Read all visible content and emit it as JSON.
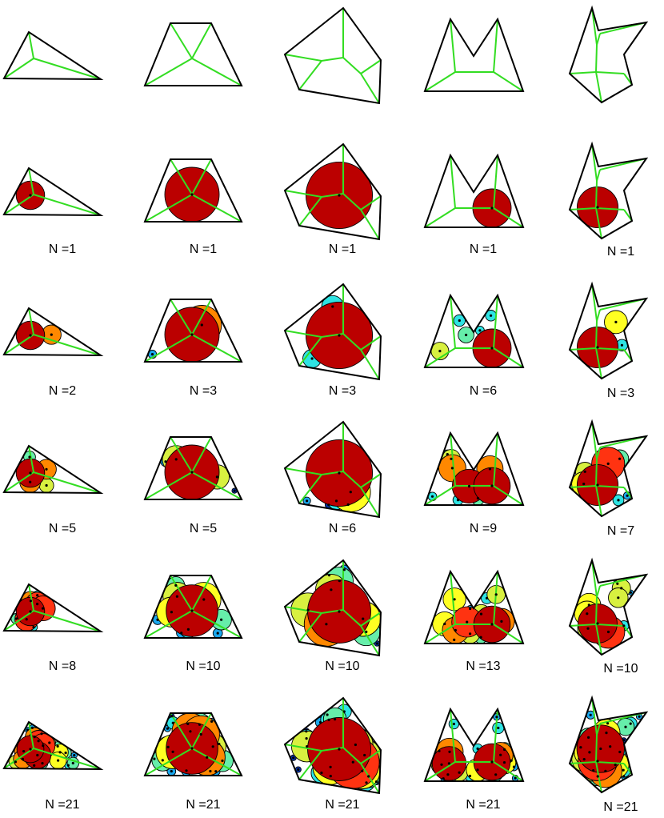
{
  "figure": {
    "columns": [
      "triangle",
      "trapezoid",
      "pentagon",
      "m-shape",
      "arrow-shape"
    ],
    "skeleton_color": "#33dd22",
    "outline_color": "#000000",
    "circle_palette": [
      "#0033aa",
      "#1aa8ee",
      "#2ee3e3",
      "#66eeaa",
      "#d8f040",
      "#ffff22",
      "#ff8800",
      "#ff3311",
      "#bb0000"
    ],
    "rows": [
      {
        "row": 1,
        "labels": [
          "",
          "",
          "",
          "",
          ""
        ],
        "counts": [
          0,
          0,
          0,
          0,
          0
        ]
      },
      {
        "row": 2,
        "labels": [
          "N =1",
          "N =1",
          "N =1",
          "N =1",
          "N =1"
        ],
        "counts": [
          1,
          1,
          1,
          1,
          1
        ]
      },
      {
        "row": 3,
        "labels": [
          "N =2",
          "N =3",
          "N =3",
          "N =6",
          "N =3"
        ],
        "counts": [
          2,
          3,
          3,
          6,
          3
        ]
      },
      {
        "row": 4,
        "labels": [
          "N =5",
          "N =5",
          "N =6",
          "N =9",
          "N =7"
        ],
        "counts": [
          5,
          5,
          6,
          9,
          7
        ]
      },
      {
        "row": 5,
        "labels": [
          "N =8",
          "N =10",
          "N =10",
          "N =13",
          "N =10"
        ],
        "counts": [
          8,
          10,
          10,
          13,
          10
        ]
      },
      {
        "row": 6,
        "labels": [
          "N =21",
          "N =21",
          "N =21",
          "N =21",
          "N =21"
        ],
        "counts": [
          21,
          21,
          21,
          21,
          21
        ]
      }
    ]
  }
}
